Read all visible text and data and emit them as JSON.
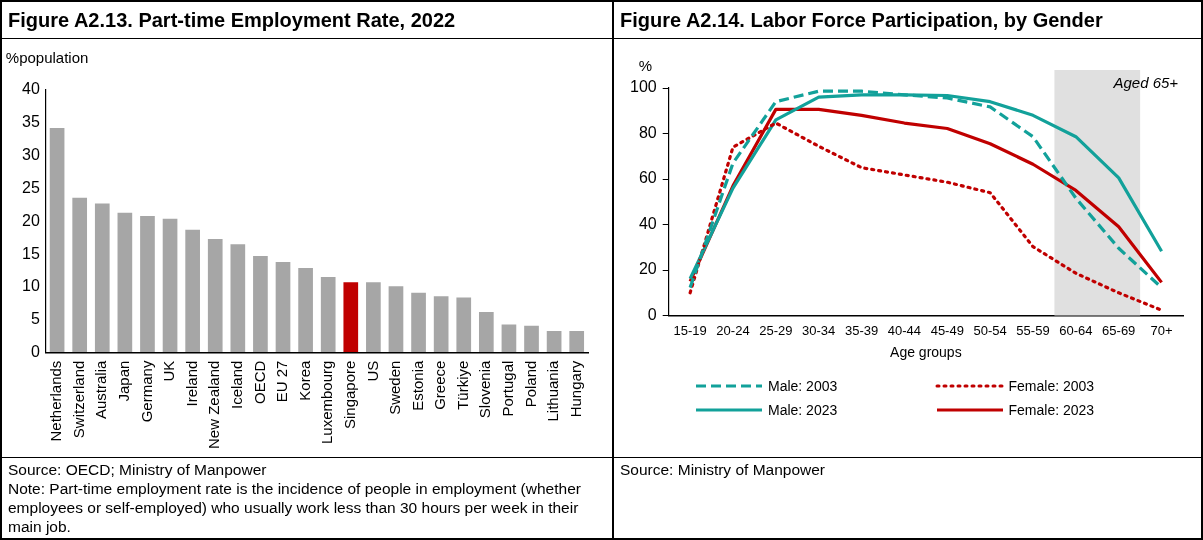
{
  "chart_data": [
    {
      "type": "bar",
      "title": "Figure A2.13. Part-time Employment Rate, 2022",
      "ylabel": "%population",
      "categories": [
        "Netherlands",
        "Switzerland",
        "Australia",
        "Japan",
        "Germany",
        "UK",
        "Ireland",
        "New Zealand",
        "Iceland",
        "OECD",
        "EU 27",
        "Korea",
        "Luxembourg",
        "Singapore",
        "US",
        "Sweden",
        "Estonia",
        "Greece",
        "Türkiye",
        "Slovenia",
        "Portugal",
        "Poland",
        "Lithuania",
        "Hungary"
      ],
      "values": [
        34.2,
        23.6,
        22.7,
        21.3,
        20.8,
        20.4,
        18.7,
        17.3,
        16.5,
        14.7,
        13.8,
        12.9,
        11.5,
        10.7,
        10.7,
        10.1,
        9.1,
        8.6,
        8.4,
        6.2,
        4.3,
        4.1,
        3.3,
        3.3
      ],
      "colors": [
        "#a6a6a6",
        "#a6a6a6",
        "#a6a6a6",
        "#a6a6a6",
        "#a6a6a6",
        "#a6a6a6",
        "#a6a6a6",
        "#a6a6a6",
        "#a6a6a6",
        "#a6a6a6",
        "#a6a6a6",
        "#a6a6a6",
        "#a6a6a6",
        "#c00000",
        "#a6a6a6",
        "#a6a6a6",
        "#a6a6a6",
        "#a6a6a6",
        "#a6a6a6",
        "#a6a6a6",
        "#a6a6a6",
        "#a6a6a6",
        "#a6a6a6",
        "#a6a6a6"
      ],
      "ylim": [
        0,
        40
      ],
      "yticks": [
        0,
        5,
        10,
        15,
        20,
        25,
        30,
        35,
        40
      ],
      "grid": false,
      "legend": false,
      "annotations": [
        "Source: OECD; Ministry of Manpower",
        "Note: Part-time employment rate is the incidence of people in employment (whether employees or self-employed) who usually work less than 30 hours per week in their main job."
      ]
    },
    {
      "type": "line",
      "title": "Figure A2.14. Labor Force Participation, by Gender",
      "ylabel": "%",
      "xlabel": "Age groups",
      "categories": [
        "15-19",
        "20-24",
        "25-29",
        "30-34",
        "35-39",
        "40-44",
        "45-49",
        "50-54",
        "55-59",
        "60-64",
        "65-69",
        "70+"
      ],
      "series": [
        {
          "name": "Male: 2003",
          "color": "#12a19a",
          "line_style": "dashed",
          "values": [
            12.3,
            67,
            94,
            98.6,
            98.6,
            97,
            95.6,
            91.7,
            78.6,
            51.6,
            29.6,
            12.3
          ]
        },
        {
          "name": "Female: 2003",
          "color": "#c00000",
          "line_style": "dotted",
          "values": [
            10,
            74,
            84.6,
            74.4,
            65,
            61.8,
            58.6,
            54,
            30.3,
            18.6,
            10,
            2.4
          ]
        },
        {
          "name": "Male: 2023",
          "color": "#12a19a",
          "line_style": "solid",
          "values": [
            16.2,
            56,
            86,
            96,
            97,
            97,
            96.7,
            94,
            88,
            78.6,
            60.5,
            28.3
          ]
        },
        {
          "name": "Female: 2023",
          "color": "#c00000",
          "line_style": "solid",
          "values": [
            15,
            57,
            90.6,
            90.6,
            88,
            84.6,
            82.2,
            75.5,
            66.5,
            55,
            39,
            14.6
          ]
        }
      ],
      "ylim": [
        0,
        100
      ],
      "yticks": [
        0,
        20,
        40,
        60,
        80,
        100
      ],
      "grid": false,
      "legend": "bottom",
      "marker": "none",
      "bands": [
        {
          "axis": "x",
          "from": "60-64",
          "to": "65-69",
          "label": "Aged 65+",
          "color": "#e0e0e0"
        }
      ],
      "annotations": [
        "Source: Ministry of Manpower"
      ]
    }
  ]
}
